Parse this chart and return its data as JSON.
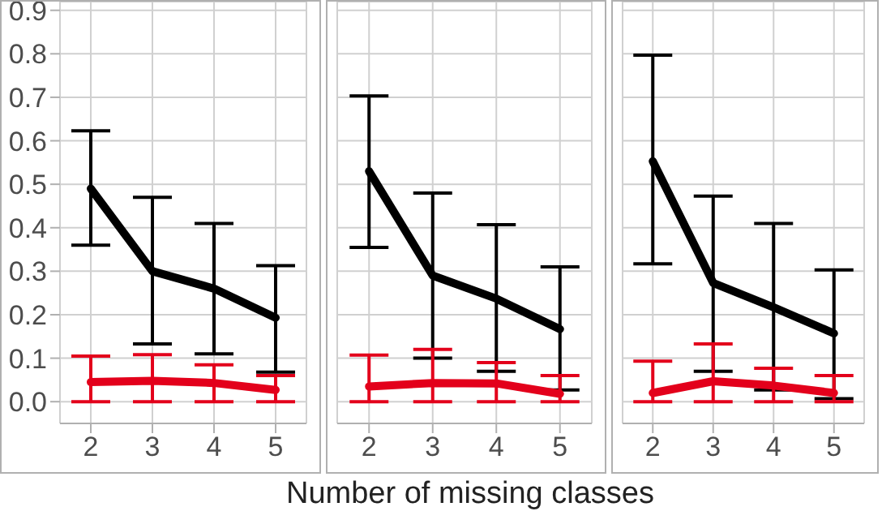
{
  "chart_data": [
    {
      "type": "line",
      "x": [
        2,
        3,
        4,
        5
      ],
      "xlim": [
        1.5,
        5.5
      ],
      "xticks": [
        2,
        3,
        4,
        5
      ],
      "ylim": [
        -0.05,
        0.92
      ],
      "yticks": [
        {
          "value": 0,
          "label": "0.0"
        },
        0.1,
        0.2,
        0.3,
        0.4,
        0.5,
        0.6,
        0.7,
        0.8,
        0.9
      ],
      "grid": true,
      "series": [
        {
          "color": "#000000",
          "values": [
            0.49,
            0.3,
            0.26,
            0.193
          ],
          "errors": [
            [
              0.36,
              0.623
            ],
            [
              0.133,
              0.47
            ],
            [
              0.11,
              0.41
            ],
            [
              0.068,
              0.313
            ]
          ]
        },
        {
          "color": "#e3001b",
          "values": [
            0.045,
            0.048,
            0.043,
            0.027
          ],
          "errors": [
            [
              0,
              0.105
            ],
            [
              0,
              0.108
            ],
            [
              0,
              0.085
            ],
            [
              0,
              0.06
            ]
          ]
        }
      ]
    },
    {
      "type": "line",
      "x": [
        2,
        3,
        4,
        5
      ],
      "xlim": [
        1.5,
        5.5
      ],
      "xticks": [
        2,
        3,
        4,
        5
      ],
      "ylim": [
        -0.05,
        0.92
      ],
      "yticks": [
        0,
        0.1,
        0.2,
        0.3,
        0.4,
        0.5,
        0.6,
        0.7,
        0.8,
        0.9
      ],
      "grid": true,
      "tick_labels": "x",
      "xlabel": "Number of missing classes",
      "series": [
        {
          "color": "#000000",
          "values": [
            0.53,
            0.29,
            0.237,
            0.167
          ],
          "errors": [
            [
              0.355,
              0.703
            ],
            [
              0.1,
              0.48
            ],
            [
              0.07,
              0.407
            ],
            [
              0.027,
              0.31
            ]
          ]
        },
        {
          "color": "#e3001b",
          "values": [
            0.035,
            0.043,
            0.042,
            0.018
          ],
          "errors": [
            [
              0,
              0.107
            ],
            [
              0,
              0.12
            ],
            [
              0,
              0.09
            ],
            [
              0,
              0.06
            ]
          ]
        }
      ]
    },
    {
      "type": "line",
      "x": [
        2,
        3,
        4,
        5
      ],
      "xlim": [
        1.5,
        5.5
      ],
      "xticks": [
        2,
        3,
        4,
        5
      ],
      "ylim": [
        -0.05,
        0.92
      ],
      "yticks": [
        0,
        0.1,
        0.2,
        0.3,
        0.4,
        0.5,
        0.6,
        0.7,
        0.8,
        0.9
      ],
      "grid": true,
      "tick_labels": "x",
      "series": [
        {
          "color": "#000000",
          "values": [
            0.553,
            0.273,
            0.217,
            0.157
          ],
          "errors": [
            [
              0.317,
              0.797
            ],
            [
              0.07,
              0.473
            ],
            [
              0.027,
              0.41
            ],
            [
              0.007,
              0.303
            ]
          ]
        },
        {
          "color": "#e3001b",
          "values": [
            0.02,
            0.047,
            0.037,
            0.02
          ],
          "errors": [
            [
              0,
              0.093
            ],
            [
              0,
              0.133
            ],
            [
              0,
              0.077
            ],
            [
              0,
              0.06
            ]
          ]
        }
      ]
    }
  ]
}
